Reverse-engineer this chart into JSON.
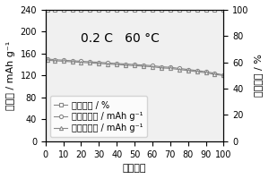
{
  "title": "",
  "annotation": "0.2 C   60 °C",
  "xlabel": "循环次数",
  "ylabel_left": "比容量 / mAh g⁻¹",
  "ylabel_right": "库伦效率 / %",
  "xlim": [
    0,
    100
  ],
  "ylim_left": [
    0,
    240
  ],
  "ylim_right": [
    0,
    100
  ],
  "xticks": [
    0,
    10,
    20,
    30,
    40,
    50,
    60,
    70,
    80,
    90,
    100
  ],
  "yticks_left": [
    0,
    40,
    80,
    120,
    160,
    200,
    240
  ],
  "yticks_right": [
    0,
    20,
    40,
    60,
    80,
    100
  ],
  "cycles": [
    1,
    5,
    10,
    15,
    20,
    25,
    30,
    35,
    40,
    45,
    50,
    55,
    60,
    65,
    70,
    75,
    80,
    85,
    90,
    95,
    100
  ],
  "coulombic_efficiency": [
    100,
    100,
    100,
    100,
    100,
    100,
    100,
    100,
    100,
    100,
    100,
    100,
    100,
    100,
    100,
    100,
    100,
    100,
    100,
    100,
    100
  ],
  "charge_capacity": [
    150,
    149,
    148,
    147,
    146,
    145,
    144,
    143,
    142,
    141,
    140,
    139,
    138,
    136,
    135,
    133,
    131,
    129,
    127,
    124,
    121
  ],
  "discharge_capacity": [
    148,
    147,
    146,
    145,
    144,
    143,
    142,
    141,
    140,
    139,
    138,
    137,
    136,
    134,
    133,
    131,
    129,
    127,
    125,
    122,
    120
  ],
  "legend_labels": [
    "库伦效率 / %",
    "充电比容量 / mAh g⁻¹",
    "放电比容量 / mAh g⁻¹"
  ],
  "marker_efficiency": "s",
  "marker_charge": "o",
  "marker_discharge": "^",
  "color_efficiency": "#888888",
  "color_charge": "#888888",
  "color_discharge": "#888888",
  "background_color": "#f0f0f0",
  "fig_background": "#ffffff",
  "annotation_fontsize": 10,
  "label_fontsize": 8,
  "tick_fontsize": 7,
  "legend_fontsize": 7
}
